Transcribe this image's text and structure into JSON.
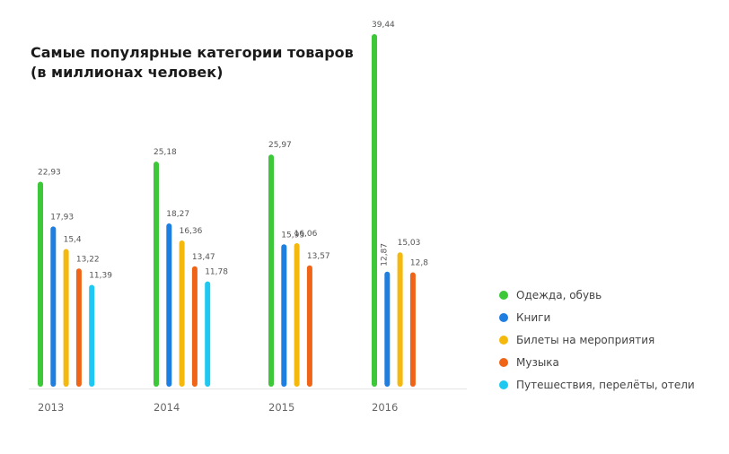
{
  "chart_data": {
    "type": "bar",
    "title": "Самые популярные категории товаров",
    "subtitle": "(в миллионах человек)",
    "categories": [
      "2013",
      "2014",
      "2015",
      "2016"
    ],
    "series": [
      {
        "name": "Одежда, обувь",
        "color": "#3cc839",
        "values": [
          22.93,
          25.18,
          25.97,
          39.44
        ],
        "labels": [
          "22,93",
          "25,18",
          "25,97",
          "39,44"
        ]
      },
      {
        "name": "Книги",
        "color": "#1f7fe0",
        "values": [
          17.93,
          18.27,
          15.93,
          12.87
        ],
        "labels": [
          "17,93",
          "18,27",
          "15,93",
          "12,87"
        ]
      },
      {
        "name": "Билеты на мероприятия",
        "color": "#f5b90e",
        "values": [
          15.4,
          16.36,
          16.06,
          15.03
        ],
        "labels": [
          "15,4",
          "16,36",
          "16,06",
          "15,03"
        ]
      },
      {
        "name": "Музыка",
        "color": "#f06417",
        "values": [
          13.22,
          13.47,
          13.57,
          12.8
        ],
        "labels": [
          "13,22",
          "13,47",
          "13,57",
          "12,8"
        ]
      },
      {
        "name": "Путешествия, перелёты, отели",
        "color": "#1ec8f0",
        "values": [
          11.39,
          11.78,
          null,
          null
        ],
        "labels": [
          "11,39",
          "11,78",
          "",
          ""
        ]
      }
    ],
    "ylim": [
      0,
      39.44
    ],
    "grid": false,
    "legend_position": "right"
  }
}
